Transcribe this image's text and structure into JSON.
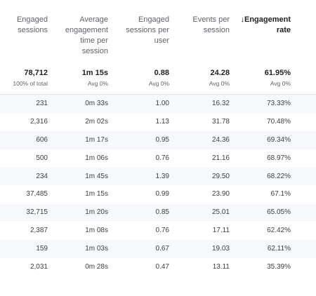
{
  "headers": [
    {
      "label_lines": [
        "Engaged",
        "sessions"
      ],
      "sorted": false
    },
    {
      "label_lines": [
        "Average",
        "engagement",
        "time per",
        "session"
      ],
      "sorted": false
    },
    {
      "label_lines": [
        "Engaged",
        "sessions per",
        "user"
      ],
      "sorted": false
    },
    {
      "label_lines": [
        "Events per",
        "session"
      ],
      "sorted": false
    },
    {
      "label_lines": [
        "↓Engagement",
        "rate"
      ],
      "sorted": true,
      "sort_icon": "arrow-down-icon"
    }
  ],
  "totals": [
    {
      "value": "78,712",
      "sub": "100% of total"
    },
    {
      "value": "1m 15s",
      "sub": "Avg 0%"
    },
    {
      "value": "0.88",
      "sub": "Avg 0%"
    },
    {
      "value": "24.28",
      "sub": "Avg 0%"
    },
    {
      "value": "61.95%",
      "sub": "Avg 0%"
    }
  ],
  "rows": [
    [
      "231",
      "0m 33s",
      "1.00",
      "16.32",
      "73.33%"
    ],
    [
      "2,316",
      "2m 02s",
      "1.13",
      "31.78",
      "70.48%"
    ],
    [
      "606",
      "1m 17s",
      "0.95",
      "24.36",
      "69.34%"
    ],
    [
      "500",
      "1m 06s",
      "0.76",
      "21.16",
      "68.97%"
    ],
    [
      "234",
      "1m 45s",
      "1.39",
      "29.50",
      "68.22%"
    ],
    [
      "37,485",
      "1m 15s",
      "0.99",
      "23.90",
      "67.1%"
    ],
    [
      "32,715",
      "1m 20s",
      "0.85",
      "25.01",
      "65.05%"
    ],
    [
      "2,387",
      "1m 08s",
      "0.76",
      "17.11",
      "62.42%"
    ],
    [
      "159",
      "1m 03s",
      "0.67",
      "19.03",
      "62.11%"
    ],
    [
      "2,031",
      "0m 28s",
      "0.47",
      "13.11",
      "35.39%"
    ]
  ],
  "colors": {
    "alt_row": "#f6f8fb",
    "header_text": "#5f6368",
    "body_text": "#3c4043"
  }
}
